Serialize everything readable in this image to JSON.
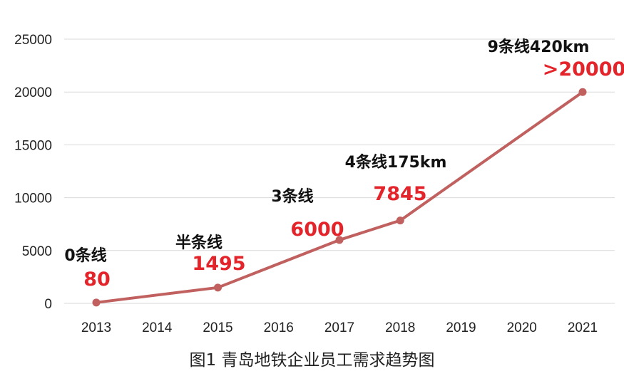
{
  "chart_data": {
    "type": "line",
    "categories": [
      "2013",
      "2014",
      "2015",
      "2016",
      "2017",
      "2018",
      "2019",
      "2020",
      "2021"
    ],
    "points": [
      {
        "x": "2013",
        "y": 80
      },
      {
        "x": "2015",
        "y": 1495
      },
      {
        "x": "2017",
        "y": 6000
      },
      {
        "x": "2018",
        "y": 7845
      },
      {
        "x": "2021",
        "y": 20000
      }
    ],
    "y_ticks": [
      "0",
      "5000",
      "10000",
      "15000",
      "20000",
      "25000"
    ],
    "ylim": [
      0,
      25000
    ],
    "grid": true,
    "line_color": "#c0605f",
    "annotations": [
      {
        "x": "2013",
        "line_label": "0条线",
        "value_label": "80"
      },
      {
        "x": "2015",
        "line_label": "半条线",
        "value_label": "1495"
      },
      {
        "x": "2017",
        "line_label": "3条线",
        "value_label": "6000"
      },
      {
        "x": "2018",
        "line_label": "4条线175km",
        "value_label": "7845"
      },
      {
        "x": "2021",
        "line_label": "9条线420km",
        "value_label": ">20000"
      }
    ]
  },
  "caption": "图1  青岛地铁企业员工需求趋势图"
}
